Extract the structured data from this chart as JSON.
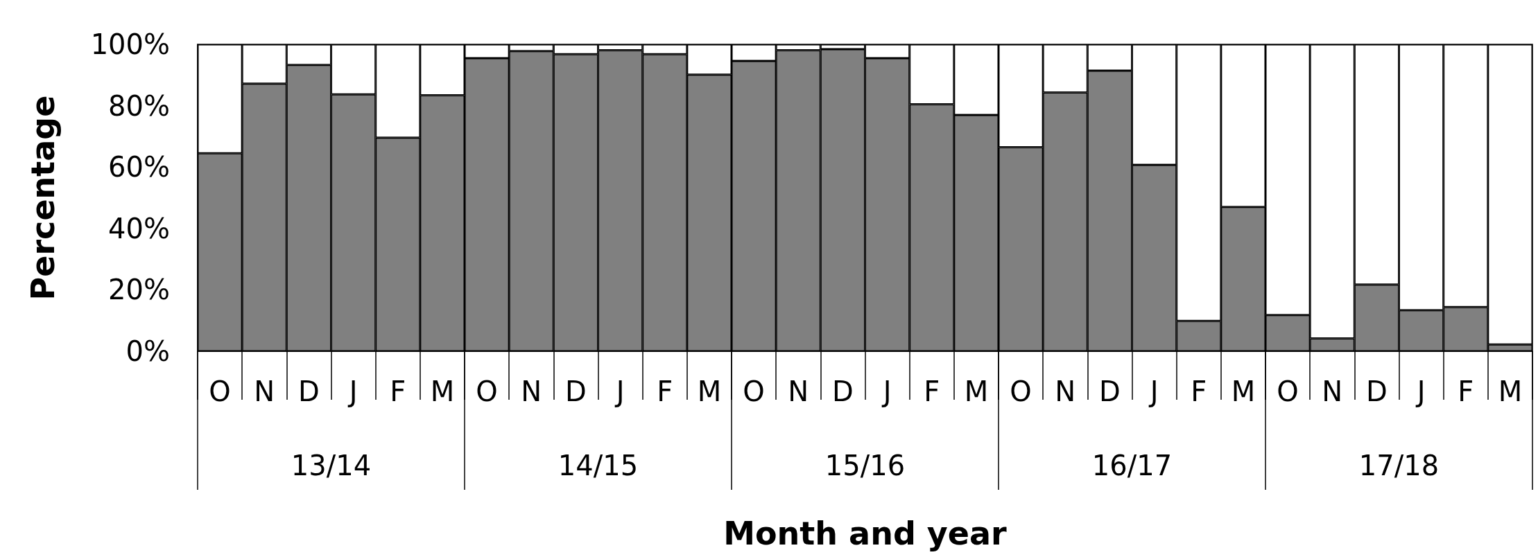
{
  "chart_data": {
    "type": "bar",
    "stacked": true,
    "xlabel": "Month and year",
    "ylabel": "Percentage",
    "categories": [
      "O",
      "N",
      "D",
      "J",
      "F",
      "M",
      "O",
      "N",
      "D",
      "J",
      "F",
      "M",
      "O",
      "N",
      "D",
      "J",
      "F",
      "M",
      "O",
      "N",
      "D",
      "J",
      "F",
      "M",
      "O",
      "N",
      "D",
      "J",
      "F",
      "M"
    ],
    "annotations": [
      "13/14",
      "14/15",
      "15/16",
      "16/17",
      "17/18"
    ],
    "series": [
      {
        "color": "#808080",
        "values": [
          64.5,
          87.2,
          93.3,
          83.7,
          69.6,
          83.4,
          95.5,
          97.8,
          96.8,
          98.1,
          96.8,
          90.1,
          94.6,
          98.1,
          98.4,
          95.5,
          80.5,
          77.0,
          66.5,
          84.3,
          91.4,
          60.7,
          9.9,
          47.0,
          11.8,
          4.2,
          21.7,
          13.4,
          14.4,
          2.2
        ]
      },
      {
        "color": "#ffffff",
        "values": [
          35.5,
          12.8,
          6.7,
          16.3,
          30.4,
          16.6,
          4.5,
          2.2,
          3.2,
          1.9,
          3.2,
          9.9,
          5.4,
          1.9,
          1.6,
          4.5,
          19.5,
          23.0,
          33.5,
          15.7,
          8.6,
          39.3,
          90.1,
          53.0,
          88.2,
          95.8,
          78.3,
          86.6,
          85.6,
          97.8
        ]
      }
    ],
    "ylim": [
      0,
      100
    ],
    "yticks": [
      {
        "value": 0,
        "label": "0%"
      },
      {
        "value": 20,
        "label": "20%"
      },
      {
        "value": 40,
        "label": "40%"
      },
      {
        "value": 60,
        "label": "60%"
      },
      {
        "value": 80,
        "label": "80%"
      },
      {
        "value": 100,
        "label": "100%"
      }
    ],
    "grid": false
  }
}
